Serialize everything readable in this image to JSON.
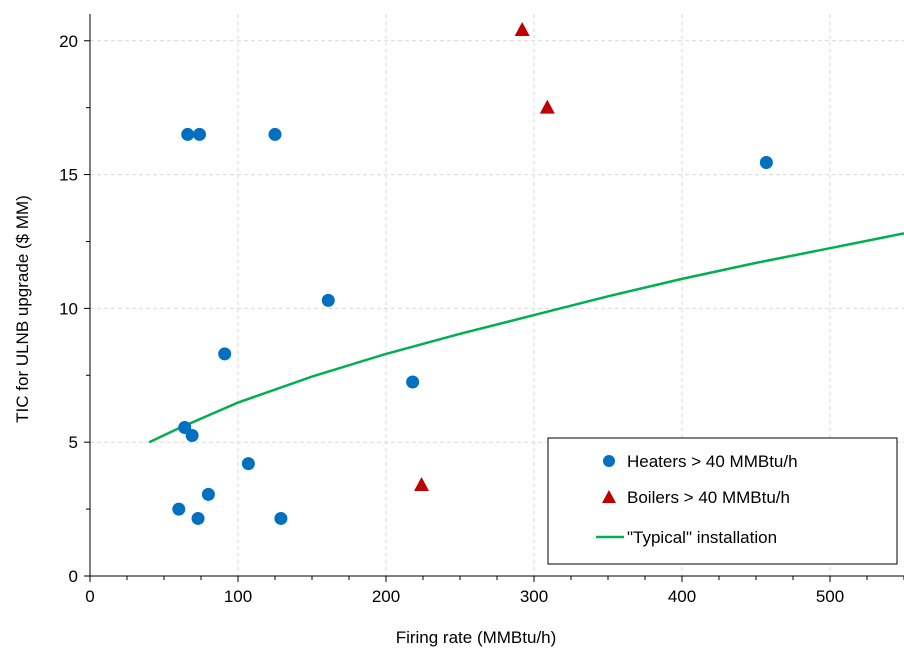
{
  "chart_data": {
    "type": "scatter",
    "title": "",
    "xlabel": "Firing rate (MMBtu/h)",
    "ylabel": "TIC for ULNB upgrade ($ MM)",
    "xlim": [
      0,
      550
    ],
    "ylim": [
      0,
      21
    ],
    "x_ticks": [
      0,
      100,
      200,
      300,
      400,
      500
    ],
    "y_ticks": [
      0,
      5,
      10,
      15,
      20
    ],
    "grid": true,
    "legend_position": "bottom-right",
    "series": [
      {
        "name": "Heaters > 40 MMBtu/h",
        "marker": "circle",
        "color": "#0070c0",
        "points": [
          {
            "x": 60,
            "y": 2.5
          },
          {
            "x": 64,
            "y": 5.55
          },
          {
            "x": 66,
            "y": 16.5
          },
          {
            "x": 69,
            "y": 5.25
          },
          {
            "x": 73,
            "y": 2.15
          },
          {
            "x": 74,
            "y": 16.5
          },
          {
            "x": 80,
            "y": 3.05
          },
          {
            "x": 91,
            "y": 8.3
          },
          {
            "x": 107,
            "y": 4.2
          },
          {
            "x": 125,
            "y": 16.5
          },
          {
            "x": 129,
            "y": 2.15
          },
          {
            "x": 161,
            "y": 10.3
          },
          {
            "x": 218,
            "y": 7.25
          },
          {
            "x": 457,
            "y": 15.45
          }
        ]
      },
      {
        "name": "Boilers > 40 MMBtu/h",
        "marker": "triangle",
        "color": "#c00000",
        "points": [
          {
            "x": 224,
            "y": 3.4
          },
          {
            "x": 292,
            "y": 20.4
          },
          {
            "x": 309,
            "y": 17.5
          }
        ]
      },
      {
        "name": "\"Typical\" installation",
        "marker": "line",
        "color": "#00b050",
        "points": [
          {
            "x": 40,
            "y": 5.0
          },
          {
            "x": 60,
            "y": 5.52
          },
          {
            "x": 80,
            "y": 6.0
          },
          {
            "x": 100,
            "y": 6.48
          },
          {
            "x": 150,
            "y": 7.45
          },
          {
            "x": 200,
            "y": 8.3
          },
          {
            "x": 250,
            "y": 9.05
          },
          {
            "x": 300,
            "y": 9.75
          },
          {
            "x": 350,
            "y": 10.45
          },
          {
            "x": 400,
            "y": 11.1
          },
          {
            "x": 450,
            "y": 11.7
          },
          {
            "x": 500,
            "y": 12.25
          },
          {
            "x": 550,
            "y": 12.8
          }
        ]
      }
    ]
  }
}
